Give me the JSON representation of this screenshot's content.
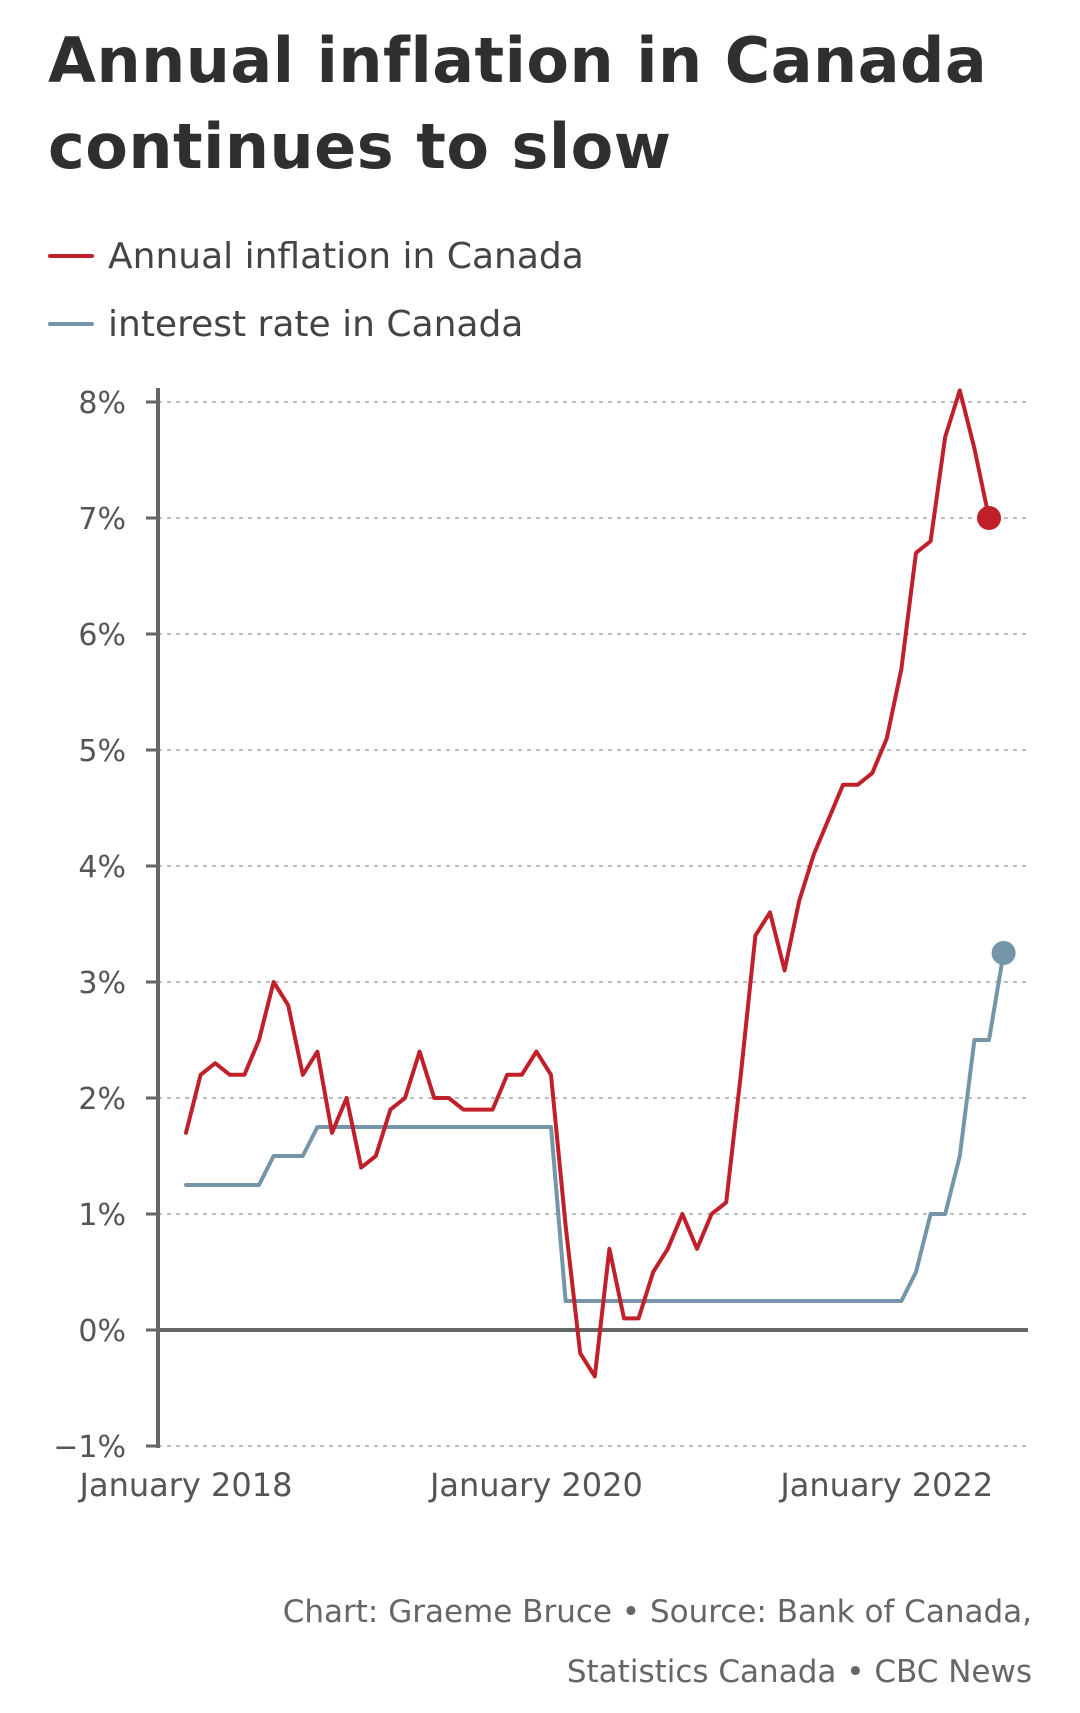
{
  "chart_data": {
    "type": "line",
    "title": "Annual inflation in Canada continues to slow",
    "xlabel": "",
    "ylabel": "",
    "x_ticks": [
      "January 2018",
      "January 2020",
      "January 2022"
    ],
    "y_ticks": [
      "8%",
      "7%",
      "6%",
      "5%",
      "4%",
      "3%",
      "2%",
      "1%",
      "0%",
      "−1%"
    ],
    "ylim": [
      -1,
      8
    ],
    "x_start": "2018-01",
    "legend_placement": "top-left",
    "grid": "horizontal dashed",
    "series": [
      {
        "name": "Annual inflation in Canada",
        "color": "#c0202a",
        "end_marker": true,
        "values": [
          {
            "x": "2018-01",
            "y": 1.7
          },
          {
            "x": "2018-02",
            "y": 2.2
          },
          {
            "x": "2018-03",
            "y": 2.3
          },
          {
            "x": "2018-04",
            "y": 2.2
          },
          {
            "x": "2018-05",
            "y": 2.2
          },
          {
            "x": "2018-06",
            "y": 2.5
          },
          {
            "x": "2018-07",
            "y": 3.0
          },
          {
            "x": "2018-08",
            "y": 2.8
          },
          {
            "x": "2018-09",
            "y": 2.2
          },
          {
            "x": "2018-10",
            "y": 2.4
          },
          {
            "x": "2018-11",
            "y": 1.7
          },
          {
            "x": "2018-12",
            "y": 2.0
          },
          {
            "x": "2019-01",
            "y": 1.4
          },
          {
            "x": "2019-02",
            "y": 1.5
          },
          {
            "x": "2019-03",
            "y": 1.9
          },
          {
            "x": "2019-04",
            "y": 2.0
          },
          {
            "x": "2019-05",
            "y": 2.4
          },
          {
            "x": "2019-06",
            "y": 2.0
          },
          {
            "x": "2019-07",
            "y": 2.0
          },
          {
            "x": "2019-08",
            "y": 1.9
          },
          {
            "x": "2019-09",
            "y": 1.9
          },
          {
            "x": "2019-10",
            "y": 1.9
          },
          {
            "x": "2019-11",
            "y": 2.2
          },
          {
            "x": "2019-12",
            "y": 2.2
          },
          {
            "x": "2020-01",
            "y": 2.4
          },
          {
            "x": "2020-02",
            "y": 2.2
          },
          {
            "x": "2020-03",
            "y": 0.9
          },
          {
            "x": "2020-04",
            "y": -0.2
          },
          {
            "x": "2020-05",
            "y": -0.4
          },
          {
            "x": "2020-06",
            "y": 0.7
          },
          {
            "x": "2020-07",
            "y": 0.1
          },
          {
            "x": "2020-08",
            "y": 0.1
          },
          {
            "x": "2020-09",
            "y": 0.5
          },
          {
            "x": "2020-10",
            "y": 0.7
          },
          {
            "x": "2020-11",
            "y": 1.0
          },
          {
            "x": "2020-12",
            "y": 0.7
          },
          {
            "x": "2021-01",
            "y": 1.0
          },
          {
            "x": "2021-02",
            "y": 1.1
          },
          {
            "x": "2021-03",
            "y": 2.2
          },
          {
            "x": "2021-04",
            "y": 3.4
          },
          {
            "x": "2021-05",
            "y": 3.6
          },
          {
            "x": "2021-06",
            "y": 3.1
          },
          {
            "x": "2021-07",
            "y": 3.7
          },
          {
            "x": "2021-08",
            "y": 4.1
          },
          {
            "x": "2021-09",
            "y": 4.4
          },
          {
            "x": "2021-10",
            "y": 4.7
          },
          {
            "x": "2021-11",
            "y": 4.7
          },
          {
            "x": "2021-12",
            "y": 4.8
          },
          {
            "x": "2022-01",
            "y": 5.1
          },
          {
            "x": "2022-02",
            "y": 5.7
          },
          {
            "x": "2022-03",
            "y": 6.7
          },
          {
            "x": "2022-04",
            "y": 6.8
          },
          {
            "x": "2022-05",
            "y": 7.7
          },
          {
            "x": "2022-06",
            "y": 8.1
          },
          {
            "x": "2022-07",
            "y": 7.6
          },
          {
            "x": "2022-08",
            "y": 7.0
          }
        ]
      },
      {
        "name": "interest rate in Canada",
        "color": "#7596a8",
        "end_marker": true,
        "values": [
          {
            "x": "2018-01",
            "y": 1.25
          },
          {
            "x": "2018-02",
            "y": 1.25
          },
          {
            "x": "2018-03",
            "y": 1.25
          },
          {
            "x": "2018-04",
            "y": 1.25
          },
          {
            "x": "2018-05",
            "y": 1.25
          },
          {
            "x": "2018-06",
            "y": 1.25
          },
          {
            "x": "2018-07",
            "y": 1.5
          },
          {
            "x": "2018-08",
            "y": 1.5
          },
          {
            "x": "2018-09",
            "y": 1.5
          },
          {
            "x": "2018-10",
            "y": 1.75
          },
          {
            "x": "2018-11",
            "y": 1.75
          },
          {
            "x": "2018-12",
            "y": 1.75
          },
          {
            "x": "2019-01",
            "y": 1.75
          },
          {
            "x": "2019-06",
            "y": 1.75
          },
          {
            "x": "2019-12",
            "y": 1.75
          },
          {
            "x": "2020-01",
            "y": 1.75
          },
          {
            "x": "2020-02",
            "y": 1.75
          },
          {
            "x": "2020-03",
            "y": 0.25
          },
          {
            "x": "2020-06",
            "y": 0.25
          },
          {
            "x": "2021-01",
            "y": 0.25
          },
          {
            "x": "2021-06",
            "y": 0.25
          },
          {
            "x": "2022-01",
            "y": 0.25
          },
          {
            "x": "2022-02",
            "y": 0.25
          },
          {
            "x": "2022-03",
            "y": 0.5
          },
          {
            "x": "2022-04",
            "y": 1.0
          },
          {
            "x": "2022-05",
            "y": 1.0
          },
          {
            "x": "2022-06",
            "y": 1.5
          },
          {
            "x": "2022-07",
            "y": 2.5
          },
          {
            "x": "2022-08",
            "y": 2.5
          },
          {
            "x": "2022-09",
            "y": 3.25
          }
        ]
      }
    ]
  },
  "credits": {
    "line1": "Chart: Graeme Bruce • Source: Bank of Canada,",
    "line2": "Statistics Canada • CBC News"
  }
}
